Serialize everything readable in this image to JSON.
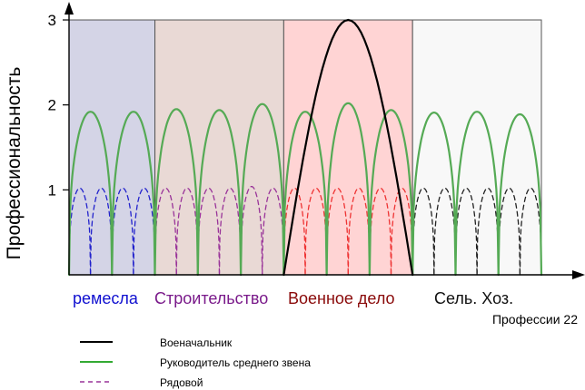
{
  "chart_data": {
    "type": "line",
    "xlabel": "Профессии 22",
    "ylabel": "Профессиональность",
    "xlim": [
      0,
      22
    ],
    "ylim": [
      0,
      3
    ],
    "yticks": [
      1,
      2,
      3
    ],
    "ytick_labels": [
      "1",
      "2",
      "3"
    ],
    "grid": false,
    "regions": [
      {
        "label": "ремесла",
        "x_start": 0,
        "x_end": 4,
        "color": "#d4d4e6",
        "label_color": "#1010d0"
      },
      {
        "label": "Строительство",
        "x_start": 4,
        "x_end": 10,
        "color": "#e9d9d5",
        "label_color": "#7a1a8a"
      },
      {
        "label": "Военное дело",
        "x_start": 10,
        "x_end": 16,
        "color": "#ffd4d4",
        "label_color": "#8a0a0a"
      },
      {
        "label": "Сель. Хоз.",
        "x_start": 16,
        "x_end": 22,
        "color": "#f8f8f8",
        "label_color": "#111111"
      }
    ],
    "series": [
      {
        "name": "Военачальник",
        "style": "solid",
        "color": "#000000",
        "arches": [
          {
            "x_start": 10,
            "x_end": 16,
            "peak": 3.0
          }
        ]
      },
      {
        "name": "Руководитель среднего звена",
        "style": "solid",
        "color": "#55aa55",
        "arches": [
          {
            "x_start": 0,
            "x_end": 2,
            "peak": 1.92
          },
          {
            "x_start": 2,
            "x_end": 4,
            "peak": 1.92
          },
          {
            "x_start": 4,
            "x_end": 6,
            "peak": 1.95
          },
          {
            "x_start": 6,
            "x_end": 8,
            "peak": 1.94
          },
          {
            "x_start": 8,
            "x_end": 10,
            "peak": 2.01
          },
          {
            "x_start": 10,
            "x_end": 12,
            "peak": 1.92
          },
          {
            "x_start": 12,
            "x_end": 14,
            "peak": 2.02
          },
          {
            "x_start": 14,
            "x_end": 16,
            "peak": 1.94
          },
          {
            "x_start": 16,
            "x_end": 18,
            "peak": 1.91
          },
          {
            "x_start": 18,
            "x_end": 20,
            "peak": 1.92
          },
          {
            "x_start": 20,
            "x_end": 22,
            "peak": 1.89
          }
        ]
      },
      {
        "name": "Рядовой",
        "style": "dashed",
        "color": "#993399",
        "arches": [
          {
            "x_start": 0,
            "x_end": 1,
            "peak": 1.02,
            "color": "#2222cc"
          },
          {
            "x_start": 1,
            "x_end": 2,
            "peak": 1.02,
            "color": "#2222cc"
          },
          {
            "x_start": 2,
            "x_end": 3,
            "peak": 1.02,
            "color": "#2222cc"
          },
          {
            "x_start": 3,
            "x_end": 4,
            "peak": 1.02,
            "color": "#2222cc"
          },
          {
            "x_start": 4,
            "x_end": 5,
            "peak": 1.02,
            "color": "#993399"
          },
          {
            "x_start": 5,
            "x_end": 6,
            "peak": 1.02,
            "color": "#993399"
          },
          {
            "x_start": 6,
            "x_end": 7,
            "peak": 1.02,
            "color": "#993399"
          },
          {
            "x_start": 7,
            "x_end": 8,
            "peak": 1.02,
            "color": "#993399"
          },
          {
            "x_start": 8,
            "x_end": 9,
            "peak": 1.04,
            "color": "#993399"
          },
          {
            "x_start": 9,
            "x_end": 10,
            "peak": 1.02,
            "color": "#993399"
          },
          {
            "x_start": 10,
            "x_end": 11,
            "peak": 1.02,
            "color": "#ee3333"
          },
          {
            "x_start": 11,
            "x_end": 12,
            "peak": 1.02,
            "color": "#ee3333"
          },
          {
            "x_start": 12,
            "x_end": 13,
            "peak": 1.02,
            "color": "#ee3333"
          },
          {
            "x_start": 13,
            "x_end": 14,
            "peak": 1.02,
            "color": "#ee3333"
          },
          {
            "x_start": 14,
            "x_end": 15,
            "peak": 1.02,
            "color": "#ee3333"
          },
          {
            "x_start": 15,
            "x_end": 16,
            "peak": 1.02,
            "color": "#ee3333"
          },
          {
            "x_start": 16,
            "x_end": 17,
            "peak": 1.02,
            "color": "#222222"
          },
          {
            "x_start": 17,
            "x_end": 18,
            "peak": 1.02,
            "color": "#222222"
          },
          {
            "x_start": 18,
            "x_end": 19,
            "peak": 1.02,
            "color": "#222222"
          },
          {
            "x_start": 19,
            "x_end": 20,
            "peak": 1.02,
            "color": "#222222"
          },
          {
            "x_start": 20,
            "x_end": 21,
            "peak": 1.02,
            "color": "#222222"
          },
          {
            "x_start": 21,
            "x_end": 22,
            "peak": 1.02,
            "color": "#222222"
          }
        ]
      }
    ],
    "legend": {
      "position": "bottom-left",
      "entries": [
        {
          "label": "Военачальник",
          "style": "solid",
          "color": "#000000"
        },
        {
          "label": "Руководитель среднего звена",
          "style": "solid",
          "color": "#33aa33"
        },
        {
          "label": "Рядовой",
          "style": "dashed",
          "color": "#993399"
        }
      ]
    }
  }
}
